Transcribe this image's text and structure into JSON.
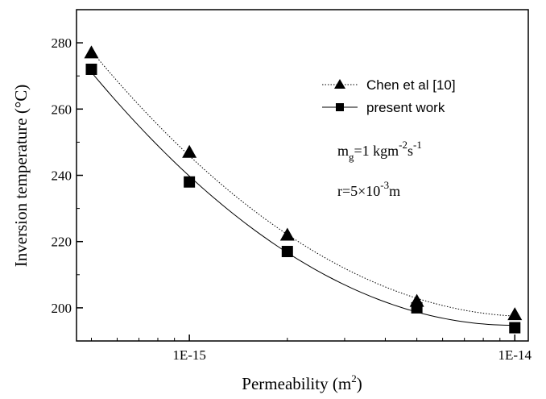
{
  "chart_data": {
    "type": "scatter",
    "xscale": "log",
    "xlim": [
      4.5e-16,
      1.1e-14
    ],
    "ylim": [
      190,
      290
    ],
    "xticks": [
      {
        "value": 1e-15,
        "label": "1E-15"
      },
      {
        "value": 1e-14,
        "label": "1E-14"
      }
    ],
    "yticks": [
      200,
      220,
      240,
      260,
      280
    ],
    "xlabel": "Permeability (m",
    "xlabel_sup": "2",
    "xlabel_end": ")",
    "ylabel": "Inversion temperature (°C)",
    "legend_position": "top-right",
    "series": [
      {
        "name": "Chen et al [10]",
        "marker": "triangle",
        "line_style": "dotted",
        "x": [
          5e-16,
          1e-15,
          2e-15,
          5e-15,
          1e-14
        ],
        "y": [
          277,
          247,
          222,
          202,
          198
        ]
      },
      {
        "name": "present work",
        "marker": "square",
        "line_style": "solid",
        "x": [
          5e-16,
          1e-15,
          2e-15,
          5e-15,
          1e-14
        ],
        "y": [
          272,
          238,
          217,
          200,
          194
        ]
      }
    ],
    "annotations": {
      "mass_flux": {
        "base": "m",
        "sub": "g",
        "mid": "=1 kgm",
        "sup1": "-2",
        "mid2": "s",
        "sup2": "-1"
      },
      "radius": {
        "base": "r=5×10",
        "sup": "-3",
        "end": "m"
      }
    }
  }
}
